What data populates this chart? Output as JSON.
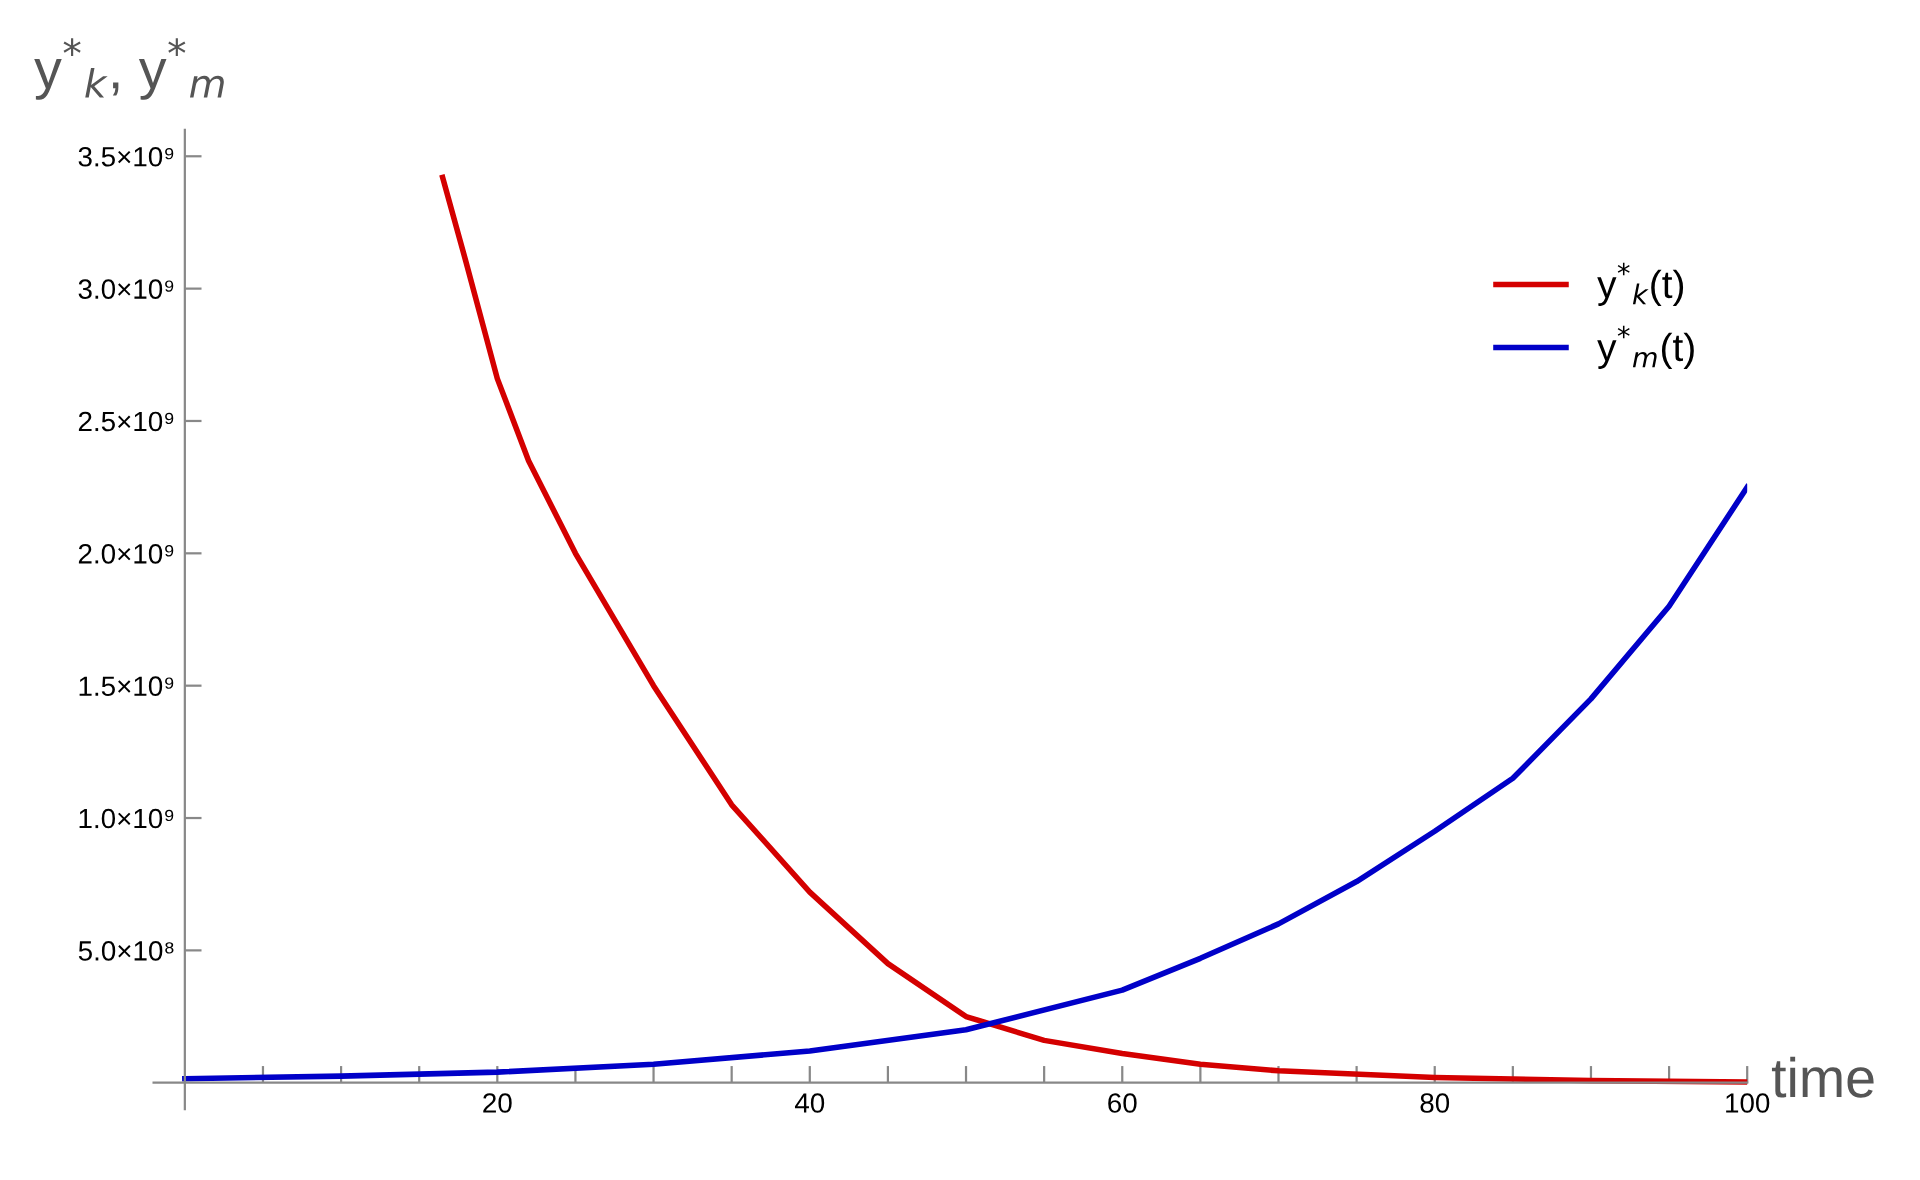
{
  "chart_data": {
    "type": "line",
    "xlabel": "time",
    "ylabel": "y$^{*}$$_{k}$, y$^{*}$$_{m}$",
    "series": [
      {
        "name": "y$^{*}$$_{k}$(t)",
        "color": "#d40000",
        "x": [
          16.5,
          18,
          20,
          22,
          25,
          30,
          35,
          40,
          45,
          50,
          55,
          60,
          65,
          70,
          80,
          90,
          100
        ],
        "values": [
          3420000000.0,
          3100000000.0,
          2660000000.0,
          2350000000.0,
          2000000000.0,
          1500000000.0,
          1050000000.0,
          720000000.0,
          450000000.0,
          250000000.0,
          160000000.0,
          110000000.0,
          70000000.0,
          45000000.0,
          20000000.0,
          8000000.0,
          3000000.0
        ]
      },
      {
        "name": "y$^{*}$$_{m}$(t)",
        "color": "#0000c8",
        "x": [
          0,
          10,
          20,
          30,
          40,
          50,
          60,
          65,
          70,
          75,
          80,
          85,
          90,
          95,
          100
        ],
        "values": [
          15000000.0,
          25000000.0,
          40000000.0,
          70000000.0,
          120000000.0,
          200000000.0,
          350000000.0,
          470000000.0,
          600000000.0,
          760000000.0,
          950000000.0,
          1150000000.0,
          1450000000.0,
          1800000000.0,
          2250000000.0
        ]
      }
    ],
    "xlim": [
      -2,
      100
    ],
    "ylim": [
      -100000000.0,
      3600000000.0
    ],
    "xticks": [
      {
        "value": 5,
        "label": null
      },
      {
        "value": 10,
        "label": null
      },
      {
        "value": 15,
        "label": null
      },
      20,
      {
        "value": 25,
        "label": null
      },
      {
        "value": 30,
        "label": null
      },
      {
        "value": 35,
        "label": null
      },
      40,
      {
        "value": 45,
        "label": null
      },
      {
        "value": 50,
        "label": null
      },
      {
        "value": 55,
        "label": null
      },
      60,
      {
        "value": 65,
        "label": null
      },
      {
        "value": 70,
        "label": null
      },
      {
        "value": 75,
        "label": null
      },
      80,
      {
        "value": 85,
        "label": null
      },
      {
        "value": 90,
        "label": null
      },
      {
        "value": 95,
        "label": null
      },
      100
    ],
    "yticks": [
      {
        "value": 500000000.0,
        "label": "5.0×10⁸"
      },
      {
        "value": 1000000000.0,
        "label": "1.0×10⁹"
      },
      {
        "value": 1500000000.0,
        "label": "1.5×10⁹"
      },
      {
        "value": 2000000000.0,
        "label": "2.0×10⁹"
      },
      {
        "value": 2500000000.0,
        "label": "2.5×10⁹"
      },
      {
        "value": 3000000000.0,
        "label": "3.0×10⁹"
      },
      {
        "value": 3500000000.0,
        "label": "3.5×10⁹"
      }
    ],
    "grid": false,
    "legend": "top right",
    "line_style": "solid",
    "marker": "none"
  }
}
